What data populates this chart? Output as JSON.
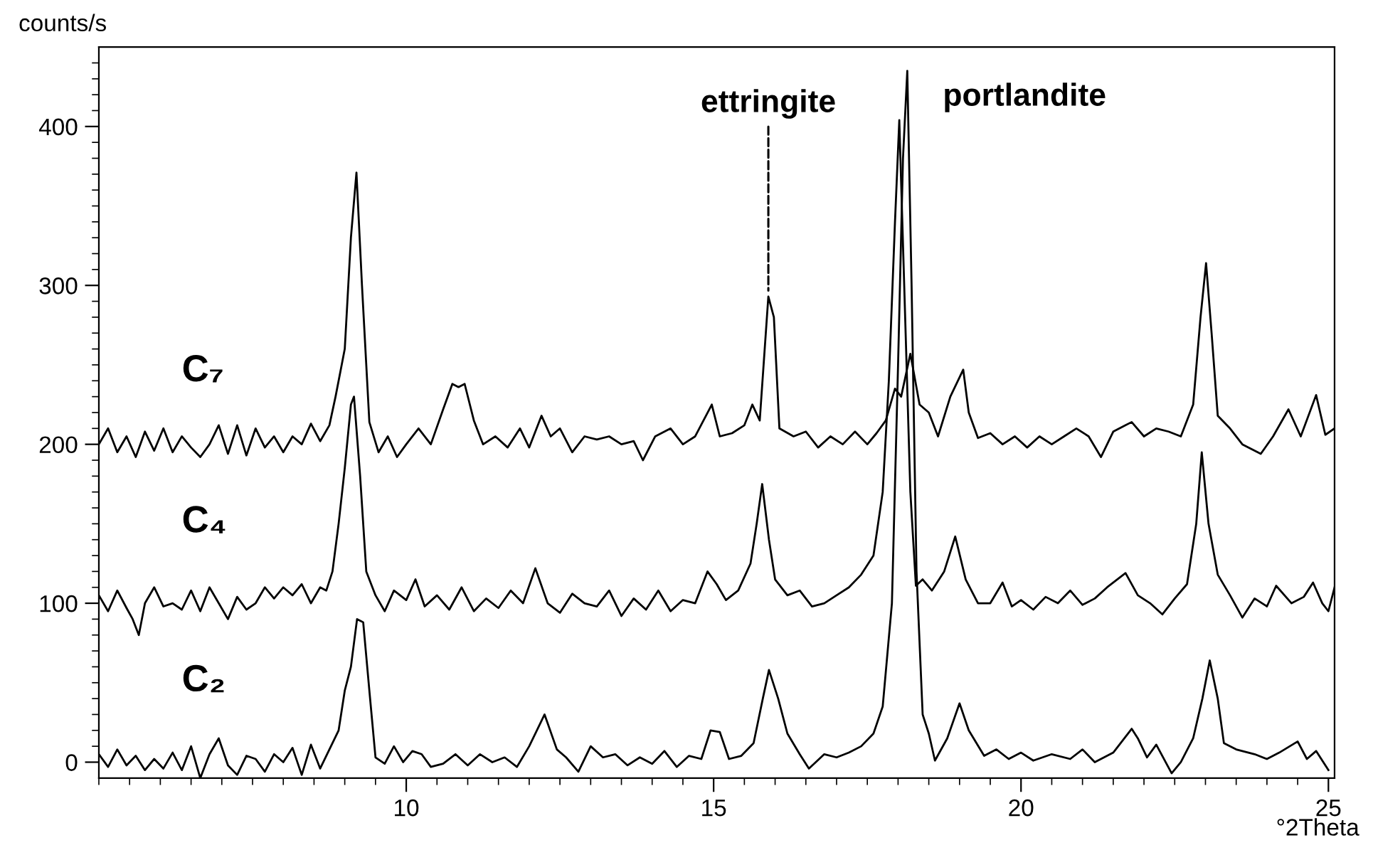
{
  "chart_data": {
    "type": "line",
    "ylabel": "counts/s",
    "xlabel": "°2Theta",
    "xlim": [
      5,
      25.1
    ],
    "ylim": [
      -10,
      450
    ],
    "xticks": [
      {
        "value": 5,
        "label": null
      },
      {
        "value": 5.5,
        "label": null
      },
      {
        "value": 6,
        "label": null
      },
      {
        "value": 6.5,
        "label": null
      },
      {
        "value": 7,
        "label": null
      },
      {
        "value": 7.5,
        "label": null
      },
      {
        "value": 8,
        "label": null
      },
      {
        "value": 8.5,
        "label": null
      },
      {
        "value": 9,
        "label": null
      },
      {
        "value": 9.5,
        "label": null
      },
      10,
      {
        "value": 10.5,
        "label": null
      },
      {
        "value": 11,
        "label": null
      },
      {
        "value": 11.5,
        "label": null
      },
      {
        "value": 12,
        "label": null
      },
      {
        "value": 12.5,
        "label": null
      },
      {
        "value": 13,
        "label": null
      },
      {
        "value": 13.5,
        "label": null
      },
      {
        "value": 14,
        "label": null
      },
      {
        "value": 14.5,
        "label": null
      },
      15,
      {
        "value": 15.5,
        "label": null
      },
      {
        "value": 16,
        "label": null
      },
      {
        "value": 16.5,
        "label": null
      },
      {
        "value": 17,
        "label": null
      },
      {
        "value": 17.5,
        "label": null
      },
      {
        "value": 18,
        "label": null
      },
      {
        "value": 18.5,
        "label": null
      },
      {
        "value": 19,
        "label": null
      },
      {
        "value": 19.5,
        "label": null
      },
      20,
      {
        "value": 20.5,
        "label": null
      },
      {
        "value": 21,
        "label": null
      },
      {
        "value": 21.5,
        "label": null
      },
      {
        "value": 22,
        "label": null
      },
      {
        "value": 22.5,
        "label": null
      },
      {
        "value": 23,
        "label": null
      },
      {
        "value": 23.5,
        "label": null
      },
      {
        "value": 24,
        "label": null
      },
      {
        "value": 24.5,
        "label": null
      },
      25
    ],
    "yticks": [
      0,
      {
        "value": 10,
        "label": null
      },
      {
        "value": 20,
        "label": null
      },
      {
        "value": 30,
        "label": null
      },
      {
        "value": 40,
        "label": null
      },
      {
        "value": 50,
        "label": null
      },
      {
        "value": 60,
        "label": null
      },
      {
        "value": 70,
        "label": null
      },
      {
        "value": 80,
        "label": null
      },
      {
        "value": 90,
        "label": null
      },
      100,
      {
        "value": 110,
        "label": null
      },
      {
        "value": 120,
        "label": null
      },
      {
        "value": 130,
        "label": null
      },
      {
        "value": 140,
        "label": null
      },
      {
        "value": 150,
        "label": null
      },
      {
        "value": 160,
        "label": null
      },
      {
        "value": 170,
        "label": null
      },
      {
        "value": 180,
        "label": null
      },
      {
        "value": 190,
        "label": null
      },
      200,
      {
        "value": 210,
        "label": null
      },
      {
        "value": 220,
        "label": null
      },
      {
        "value": 230,
        "label": null
      },
      {
        "value": 240,
        "label": null
      },
      {
        "value": 250,
        "label": null
      },
      {
        "value": 260,
        "label": null
      },
      {
        "value": 270,
        "label": null
      },
      {
        "value": 280,
        "label": null
      },
      {
        "value": 290,
        "label": null
      },
      300,
      {
        "value": 310,
        "label": null
      },
      {
        "value": 320,
        "label": null
      },
      {
        "value": 330,
        "label": null
      },
      {
        "value": 340,
        "label": null
      },
      {
        "value": 350,
        "label": null
      },
      {
        "value": 360,
        "label": null
      },
      {
        "value": 370,
        "label": null
      },
      {
        "value": 380,
        "label": null
      },
      {
        "value": 390,
        "label": null
      },
      400,
      {
        "value": 410,
        "label": null
      },
      {
        "value": 420,
        "label": null
      },
      {
        "value": 430,
        "label": null
      },
      {
        "value": 440,
        "label": null
      }
    ],
    "grid": false,
    "legend": false,
    "marker": "none",
    "line_style": "solid",
    "series": [
      {
        "name": "C₇",
        "color": "#000000",
        "x": [
          5.0,
          5.15,
          5.3,
          5.45,
          5.6,
          5.75,
          5.9,
          6.05,
          6.2,
          6.35,
          6.5,
          6.65,
          6.8,
          6.95,
          7.1,
          7.25,
          7.4,
          7.55,
          7.7,
          7.85,
          8.0,
          8.15,
          8.3,
          8.45,
          8.6,
          8.75,
          8.85,
          9.0,
          9.1,
          9.19,
          9.28,
          9.4,
          9.55,
          9.7,
          9.85,
          10.0,
          10.2,
          10.4,
          10.6,
          10.75,
          10.85,
          10.95,
          11.1,
          11.25,
          11.45,
          11.65,
          11.85,
          12.0,
          12.2,
          12.35,
          12.5,
          12.7,
          12.9,
          13.1,
          13.3,
          13.5,
          13.7,
          13.85,
          14.05,
          14.3,
          14.5,
          14.7,
          14.97,
          15.1,
          15.3,
          15.5,
          15.63,
          15.75,
          15.89,
          15.98,
          16.07,
          16.3,
          16.5,
          16.7,
          16.9,
          17.1,
          17.3,
          17.5,
          17.65,
          17.8,
          17.95,
          18.05,
          18.2,
          18.35,
          18.5,
          18.65,
          18.85,
          19.06,
          19.15,
          19.3,
          19.5,
          19.7,
          19.9,
          20.1,
          20.3,
          20.5,
          20.7,
          20.9,
          21.1,
          21.3,
          21.5,
          21.7,
          21.8,
          22.0,
          22.2,
          22.4,
          22.6,
          22.8,
          22.92,
          23.01,
          23.1,
          23.2,
          23.4,
          23.6,
          23.9,
          24.1,
          24.35,
          24.55,
          24.8,
          24.95,
          25.1
        ],
        "values": [
          200,
          210,
          195,
          205,
          192,
          208,
          196,
          210,
          195,
          205,
          198,
          192,
          200,
          212,
          194,
          212,
          193,
          210,
          198,
          205,
          195,
          205,
          200,
          213,
          202,
          212,
          230,
          260,
          330,
          371,
          300,
          214,
          195,
          205,
          192,
          200,
          210,
          200,
          222,
          238,
          236,
          238,
          215,
          200,
          205,
          198,
          210,
          198,
          218,
          205,
          210,
          195,
          205,
          203,
          205,
          200,
          202,
          190,
          205,
          210,
          200,
          205,
          225,
          205,
          207,
          212,
          225,
          215,
          293,
          280,
          210,
          205,
          208,
          198,
          205,
          200,
          208,
          200,
          207,
          215,
          235,
          230,
          257,
          225,
          220,
          205,
          230,
          247,
          220,
          204,
          207,
          200,
          205,
          198,
          205,
          200,
          205,
          210,
          205,
          192,
          208,
          212,
          214,
          205,
          210,
          208,
          205,
          225,
          280,
          314,
          270,
          218,
          210,
          200,
          194,
          205,
          222,
          205,
          231,
          206,
          210
        ]
      },
      {
        "name": "C₄",
        "color": "#000000",
        "x": [
          5.0,
          5.15,
          5.3,
          5.45,
          5.55,
          5.65,
          5.75,
          5.9,
          6.05,
          6.2,
          6.35,
          6.5,
          6.65,
          6.8,
          6.95,
          7.1,
          7.25,
          7.4,
          7.55,
          7.7,
          7.85,
          8.0,
          8.15,
          8.3,
          8.45,
          8.6,
          8.7,
          8.8,
          8.9,
          9.0,
          9.1,
          9.15,
          9.25,
          9.35,
          9.5,
          9.65,
          9.8,
          10.0,
          10.15,
          10.3,
          10.5,
          10.7,
          10.9,
          11.1,
          11.3,
          11.5,
          11.7,
          11.9,
          12.1,
          12.3,
          12.5,
          12.7,
          12.9,
          13.1,
          13.3,
          13.5,
          13.7,
          13.9,
          14.1,
          14.3,
          14.5,
          14.7,
          14.9,
          15.05,
          15.2,
          15.4,
          15.6,
          15.7,
          15.79,
          15.9,
          16.0,
          16.2,
          16.4,
          16.6,
          16.8,
          17.0,
          17.2,
          17.4,
          17.6,
          17.75,
          17.85,
          17.95,
          18.02,
          18.1,
          18.2,
          18.29,
          18.4,
          18.55,
          18.75,
          18.93,
          19.1,
          19.3,
          19.5,
          19.7,
          19.85,
          20.0,
          20.2,
          20.4,
          20.6,
          20.8,
          21.0,
          21.2,
          21.4,
          21.7,
          21.9,
          22.1,
          22.3,
          22.5,
          22.7,
          22.85,
          22.94,
          23.05,
          23.2,
          23.4,
          23.6,
          23.8,
          24.0,
          24.15,
          24.4,
          24.6,
          24.75,
          24.9,
          25.0,
          25.1
        ],
        "values": [
          105,
          95,
          108,
          97,
          90,
          80,
          100,
          110,
          98,
          100,
          96,
          108,
          95,
          110,
          100,
          90,
          104,
          96,
          100,
          110,
          103,
          110,
          105,
          112,
          100,
          110,
          108,
          120,
          150,
          185,
          225,
          230,
          180,
          120,
          105,
          95,
          108,
          102,
          115,
          98,
          105,
          96,
          110,
          95,
          103,
          97,
          108,
          100,
          122,
          100,
          94,
          106,
          100,
          98,
          108,
          92,
          103,
          96,
          108,
          95,
          102,
          100,
          120,
          112,
          102,
          108,
          125,
          150,
          175,
          140,
          115,
          105,
          108,
          98,
          100,
          105,
          110,
          118,
          130,
          170,
          240,
          340,
          404,
          300,
          170,
          111,
          115,
          108,
          120,
          142,
          115,
          100,
          100,
          113,
          98,
          102,
          96,
          104,
          100,
          108,
          99,
          103,
          110,
          119,
          105,
          100,
          93,
          103,
          112,
          150,
          195,
          150,
          118,
          105,
          91,
          103,
          98,
          111,
          100,
          104,
          113,
          100,
          95,
          110
        ]
      },
      {
        "name": "C₂",
        "color": "#000000",
        "x": [
          5.0,
          5.15,
          5.3,
          5.45,
          5.6,
          5.75,
          5.9,
          6.05,
          6.2,
          6.35,
          6.5,
          6.65,
          6.8,
          6.95,
          7.1,
          7.25,
          7.4,
          7.55,
          7.7,
          7.85,
          8.0,
          8.15,
          8.3,
          8.45,
          8.6,
          8.75,
          8.9,
          9.0,
          9.1,
          9.2,
          9.3,
          9.4,
          9.5,
          9.65,
          9.8,
          9.95,
          10.1,
          10.25,
          10.4,
          10.6,
          10.8,
          11.0,
          11.2,
          11.4,
          11.6,
          11.8,
          12.0,
          12.25,
          12.45,
          12.6,
          12.8,
          13.0,
          13.2,
          13.4,
          13.6,
          13.8,
          14.0,
          14.2,
          14.4,
          14.6,
          14.8,
          14.95,
          15.1,
          15.25,
          15.45,
          15.65,
          15.8,
          15.9,
          16.05,
          16.2,
          16.4,
          16.55,
          16.8,
          17.0,
          17.2,
          17.4,
          17.6,
          17.75,
          17.9,
          18.0,
          18.08,
          18.15,
          18.22,
          18.3,
          18.4,
          18.5,
          18.6,
          18.8,
          19.0,
          19.15,
          19.4,
          19.6,
          19.8,
          20.0,
          20.2,
          20.5,
          20.8,
          21.0,
          21.2,
          21.5,
          21.8,
          21.9,
          22.05,
          22.2,
          22.45,
          22.6,
          22.8,
          22.95,
          23.07,
          23.2,
          23.3,
          23.5,
          23.8,
          24.0,
          24.2,
          24.5,
          24.65,
          24.8,
          25.0
        ],
        "values": [
          5,
          -3,
          8,
          -2,
          4,
          -5,
          2,
          -4,
          6,
          -5,
          10,
          -10,
          5,
          15,
          -2,
          -8,
          4,
          2,
          -6,
          5,
          0,
          9,
          -8,
          11,
          -4,
          8,
          20,
          45,
          60,
          90,
          88,
          45,
          3,
          -1,
          10,
          0,
          7,
          5,
          -3,
          -1,
          5,
          -2,
          5,
          0,
          3,
          -3,
          10,
          30,
          8,
          3,
          -6,
          10,
          3,
          5,
          -2,
          3,
          -1,
          7,
          -3,
          4,
          2,
          20,
          19,
          2,
          4,
          12,
          40,
          58,
          40,
          18,
          5,
          -4,
          5,
          3,
          6,
          10,
          18,
          35,
          100,
          250,
          380,
          435,
          300,
          120,
          30,
          18,
          1,
          15,
          37,
          20,
          4,
          8,
          2,
          6,
          1,
          5,
          2,
          8,
          0,
          6,
          21,
          15,
          3,
          11,
          -7,
          0,
          15,
          40,
          64,
          40,
          12,
          8,
          5,
          2,
          6,
          13,
          2,
          7,
          -5
        ]
      }
    ],
    "annotations": [
      {
        "text": "ettringite",
        "x": 15.89,
        "y": 293
      },
      {
        "text": "portlandite",
        "x": 18.15,
        "y": 435
      }
    ]
  }
}
